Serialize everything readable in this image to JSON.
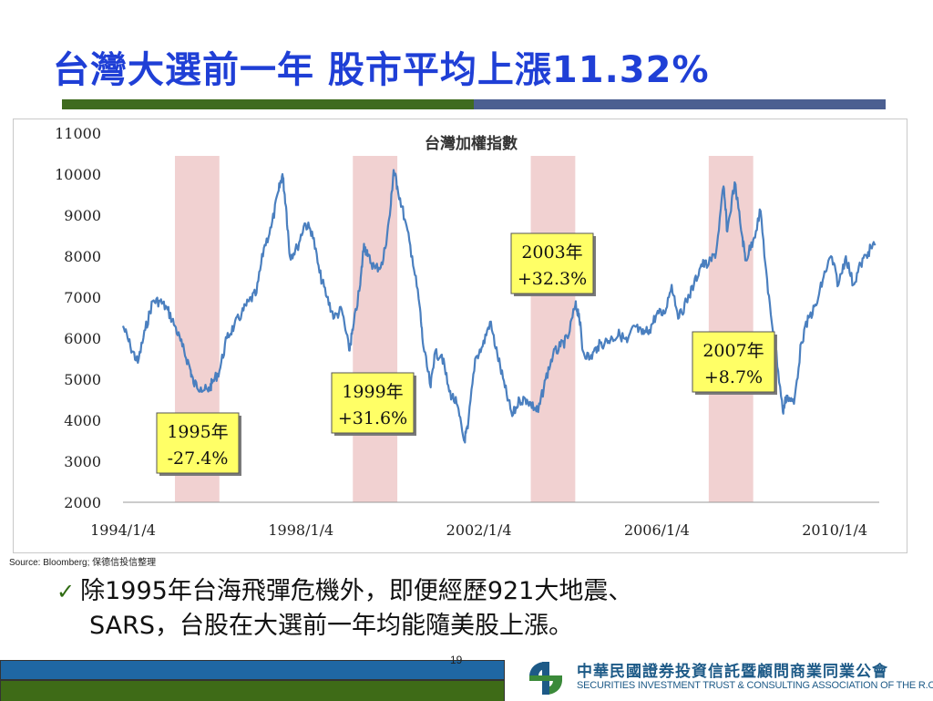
{
  "slide": {
    "title": "台灣大選前一年  股市平均上漲11.32%",
    "source": "Source: Bloomberg; 保德信投信整理",
    "bullet_line1": "除1995年台海飛彈危機外，即便經歷921大地震、",
    "bullet_line2": "SARS，台股在大選前一年均能隨美股上漲。",
    "page_number": "19",
    "association_cn": "中華民國證券投資信託暨顧問商業同業公會",
    "association_en": "SECURITIES INVESTMENT TRUST & CONSULTING ASSOCIATION OF THE R.O.C.",
    "colors": {
      "title": "#1f3fd6",
      "line": "#4a7fbf",
      "highlight": "#efc9c9",
      "callout": "#ffff66",
      "footer_blue": "#1f67a3",
      "footer_green": "#3e6b17"
    },
    "icons": [
      "check-icon",
      "association-logo-icon"
    ]
  },
  "chart_data": {
    "type": "line",
    "title": "台灣加權指數",
    "x_tick_labels": [
      "1994/1/4",
      "1998/1/4",
      "2002/1/4",
      "2006/1/4",
      "2010/1/4"
    ],
    "y_tick_labels": [
      "2000",
      "3000",
      "4000",
      "5000",
      "6000",
      "7000",
      "8000",
      "9000",
      "10000",
      "11000"
    ],
    "ylim": [
      2000,
      11000
    ],
    "xlim": [
      "1994/1/4",
      "2011/1/4"
    ],
    "grid": false,
    "series": [
      {
        "points": [
          [
            "1994/01",
            6300
          ],
          [
            "1994/03",
            5800
          ],
          [
            "1994/05",
            5400
          ],
          [
            "1994/07",
            6200
          ],
          [
            "1994/09",
            6900
          ],
          [
            "1994/11",
            6900
          ],
          [
            "1995/01",
            6700
          ],
          [
            "1995/03",
            6300
          ],
          [
            "1995/05",
            5800
          ],
          [
            "1995/07",
            5300
          ],
          [
            "1995/08",
            4900
          ],
          [
            "1995/10",
            4800
          ],
          [
            "1995/12",
            4700
          ],
          [
            "1996/01",
            4900
          ],
          [
            "1996/03",
            5200
          ],
          [
            "1996/05",
            6000
          ],
          [
            "1996/07",
            6300
          ],
          [
            "1996/09",
            6600
          ],
          [
            "1996/11",
            6900
          ],
          [
            "1997/01",
            7100
          ],
          [
            "1997/03",
            8200
          ],
          [
            "1997/05",
            8700
          ],
          [
            "1997/07",
            9600
          ],
          [
            "1997/08",
            10000
          ],
          [
            "1997/09",
            9200
          ],
          [
            "1997/10",
            8000
          ],
          [
            "1997/12",
            8200
          ],
          [
            "1998/02",
            8800
          ],
          [
            "1998/04",
            8600
          ],
          [
            "1998/06",
            7600
          ],
          [
            "1998/08",
            7000
          ],
          [
            "1998/10",
            6500
          ],
          [
            "1998/12",
            6700
          ],
          [
            "1999/02",
            5700
          ],
          [
            "1999/03",
            6200
          ],
          [
            "1999/05",
            7300
          ],
          [
            "1999/06",
            8300
          ],
          [
            "1999/07",
            8000
          ],
          [
            "1999/09",
            7700
          ],
          [
            "1999/11",
            7800
          ],
          [
            "2000/01",
            9000
          ],
          [
            "2000/02",
            10100
          ],
          [
            "2000/03",
            9700
          ],
          [
            "2000/05",
            8900
          ],
          [
            "2000/07",
            8000
          ],
          [
            "2000/09",
            6800
          ],
          [
            "2000/10",
            5800
          ],
          [
            "2000/12",
            4800
          ],
          [
            "2001/01",
            5600
          ],
          [
            "2001/03",
            5600
          ],
          [
            "2001/05",
            4700
          ],
          [
            "2001/07",
            4400
          ],
          [
            "2001/09",
            3500
          ],
          [
            "2001/10",
            3800
          ],
          [
            "2001/12",
            5500
          ],
          [
            "2002/02",
            5800
          ],
          [
            "2002/04",
            6400
          ],
          [
            "2002/06",
            5600
          ],
          [
            "2002/08",
            4800
          ],
          [
            "2002/10",
            4100
          ],
          [
            "2002/12",
            4500
          ],
          [
            "2003/02",
            4500
          ],
          [
            "2003/04",
            4300
          ],
          [
            "2003/05",
            4200
          ],
          [
            "2003/07",
            5000
          ],
          [
            "2003/09",
            5600
          ],
          [
            "2003/11",
            5800
          ],
          [
            "2004/01",
            6000
          ],
          [
            "2004/03",
            6800
          ],
          [
            "2004/04",
            6600
          ],
          [
            "2004/05",
            5700
          ],
          [
            "2004/07",
            5500
          ],
          [
            "2004/09",
            5800
          ],
          [
            "2004/11",
            5900
          ],
          [
            "2005/01",
            6000
          ],
          [
            "2005/03",
            6100
          ],
          [
            "2005/05",
            5900
          ],
          [
            "2005/07",
            6300
          ],
          [
            "2005/09",
            6100
          ],
          [
            "2005/11",
            6200
          ],
          [
            "2006/01",
            6600
          ],
          [
            "2006/03",
            6600
          ],
          [
            "2006/05",
            7300
          ],
          [
            "2006/07",
            6500
          ],
          [
            "2006/09",
            6900
          ],
          [
            "2006/11",
            7300
          ],
          [
            "2007/01",
            7800
          ],
          [
            "2007/03",
            7800
          ],
          [
            "2007/05",
            8100
          ],
          [
            "2007/07",
            9700
          ],
          [
            "2007/08",
            8600
          ],
          [
            "2007/10",
            9800
          ],
          [
            "2007/12",
            8500
          ],
          [
            "2008/01",
            7900
          ],
          [
            "2008/03",
            8400
          ],
          [
            "2008/05",
            9100
          ],
          [
            "2008/07",
            7100
          ],
          [
            "2008/09",
            5800
          ],
          [
            "2008/11",
            4200
          ],
          [
            "2008/12",
            4600
          ],
          [
            "2009/02",
            4400
          ],
          [
            "2009/04",
            5900
          ],
          [
            "2009/06",
            6500
          ],
          [
            "2009/08",
            6800
          ],
          [
            "2009/10",
            7500
          ],
          [
            "2009/12",
            8000
          ],
          [
            "2010/02",
            7300
          ],
          [
            "2010/04",
            8000
          ],
          [
            "2010/06",
            7300
          ],
          [
            "2010/08",
            7800
          ],
          [
            "2010/10",
            8100
          ],
          [
            "2010/12",
            8300
          ]
        ]
      }
    ],
    "highlight_periods": [
      {
        "start": "1995/03",
        "end": "1996/03"
      },
      {
        "start": "1999/03",
        "end": "2000/03"
      },
      {
        "start": "2003/03",
        "end": "2004/03"
      },
      {
        "start": "2007/03",
        "end": "2008/03"
      }
    ],
    "annotations": [
      {
        "line1": "1995年",
        "line2": "-27.4%"
      },
      {
        "line1": "1999年",
        "line2": "+31.6%"
      },
      {
        "line1": "2003年",
        "line2": "+32.3%"
      },
      {
        "line1": "2007年",
        "line2": "+8.7%"
      }
    ]
  }
}
